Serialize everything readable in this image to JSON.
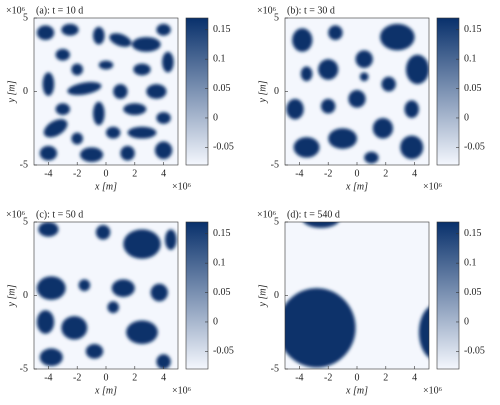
{
  "chart_data": [
    {
      "type": "heatmap",
      "title": "(a): t = 10 d",
      "x_label": "x [m]",
      "y_label": "y [m]",
      "x_multiplier": "×10⁶",
      "y_multiplier": "×10⁶",
      "xlim": [
        -5,
        5
      ],
      "xticks": [
        -4,
        -2,
        0,
        2,
        4
      ],
      "ylim": [
        -5,
        5
      ],
      "yticks": [
        -5,
        0,
        5
      ],
      "clim": [
        -0.08,
        0.17
      ],
      "cticks": [
        -0.05,
        0,
        0.05,
        0.1,
        0.15
      ],
      "colormap": [
        "#f4f7fd",
        "#08306b"
      ]
    },
    {
      "type": "heatmap",
      "title": "(b): t = 30 d",
      "x_label": "x [m]",
      "y_label": "y [m]",
      "x_multiplier": "×10⁶",
      "y_multiplier": "×10⁶",
      "xlim": [
        -5,
        5
      ],
      "xticks": [
        -4,
        -2,
        0,
        2,
        4
      ],
      "ylim": [
        -5,
        5
      ],
      "yticks": [
        -5,
        0,
        5
      ],
      "clim": [
        -0.08,
        0.17
      ],
      "cticks": [
        -0.05,
        0,
        0.05,
        0.1,
        0.15
      ],
      "colormap": [
        "#f4f7fd",
        "#08306b"
      ]
    },
    {
      "type": "heatmap",
      "title": "(c): t = 50 d",
      "x_label": "x [m]",
      "y_label": "y [m]",
      "x_multiplier": "×10⁶",
      "y_multiplier": "×10⁶",
      "xlim": [
        -5,
        5
      ],
      "xticks": [
        -4,
        -2,
        0,
        2,
        4
      ],
      "ylim": [
        -5,
        5
      ],
      "yticks": [
        -5,
        0,
        5
      ],
      "clim": [
        -0.08,
        0.17
      ],
      "cticks": [
        -0.05,
        0,
        0.05,
        0.1,
        0.15
      ],
      "colormap": [
        "#f4f7fd",
        "#08306b"
      ]
    },
    {
      "type": "heatmap",
      "title": "(d): t = 540 d",
      "x_label": "x [m]",
      "y_label": "y [m]",
      "x_multiplier": "×10⁶",
      "y_multiplier": "×10⁶",
      "xlim": [
        -5,
        5
      ],
      "xticks": [
        -4,
        -2,
        0,
        2,
        4
      ],
      "ylim": [
        -5,
        5
      ],
      "yticks": [
        -5,
        0,
        5
      ],
      "clim": [
        -0.08,
        0.17
      ],
      "cticks": [
        -0.05,
        0,
        0.05,
        0.1,
        0.15
      ],
      "colormap": [
        "#f4f7fd",
        "#08306b"
      ]
    }
  ]
}
